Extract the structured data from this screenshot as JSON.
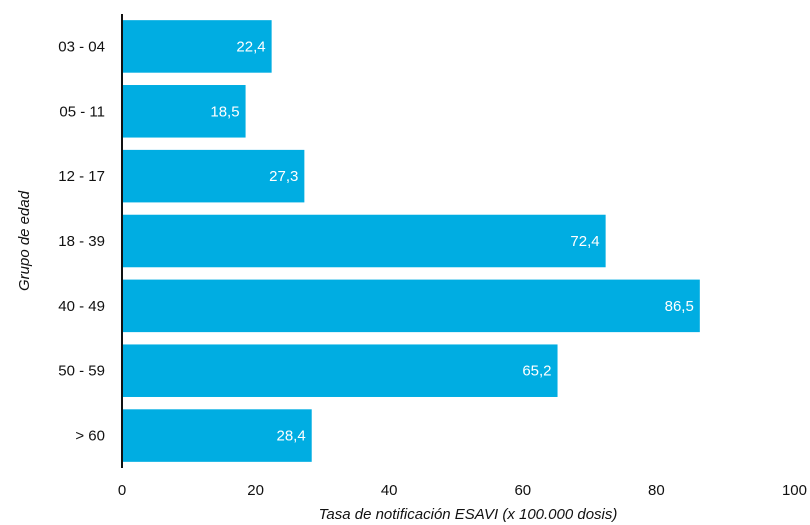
{
  "chart_data": {
    "type": "bar",
    "orientation": "horizontal",
    "categories": [
      "03 - 04",
      "05 - 11",
      "12 - 17",
      "18 - 39",
      "40 - 49",
      "50 - 59",
      "> 60"
    ],
    "values": [
      22.4,
      18.5,
      27.3,
      72.4,
      86.5,
      65.2,
      28.4
    ],
    "value_labels": [
      "22,4",
      "18,5",
      "27,3",
      "72,4",
      "86,5",
      "65,2",
      "28,4"
    ],
    "xlabel": "Tasa de notificación ESAVI (x 100.000 dosis)",
    "ylabel": "Grupo de edad",
    "xlim": [
      0,
      100
    ],
    "xticks": [
      0,
      20,
      40,
      60,
      80,
      100
    ],
    "grid": false,
    "bar_color": "#00ADE2"
  }
}
